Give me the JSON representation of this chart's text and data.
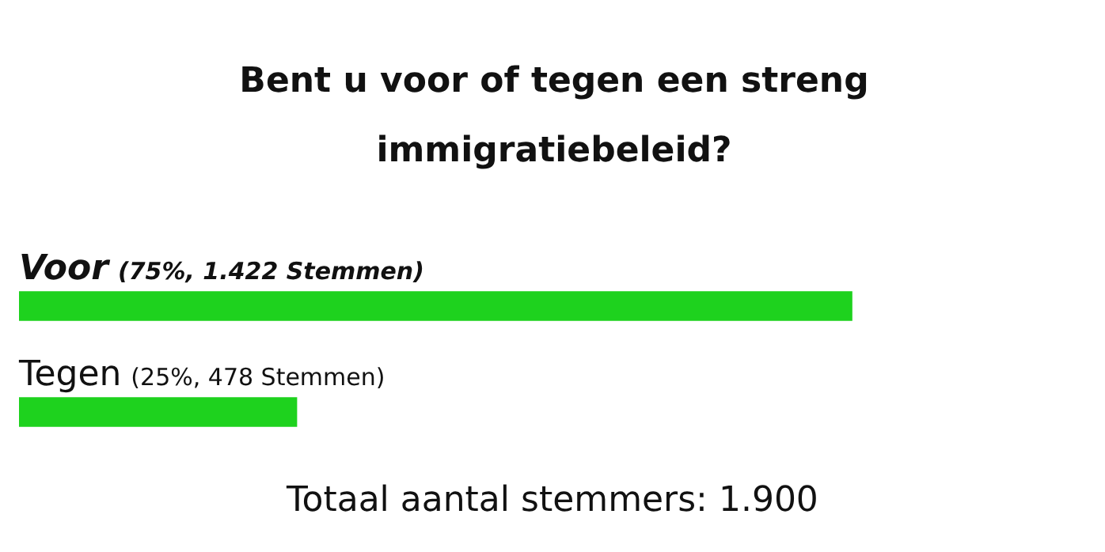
{
  "chart_data": {
    "type": "bar",
    "orientation": "horizontal",
    "title": "Bent u voor of tegen een streng immigratiebeleid?",
    "categories": [
      "Voor",
      "Tegen"
    ],
    "values": [
      75,
      25
    ],
    "value_labels": [
      "(75%, 1.422 Stemmen)",
      "(25%, 478 Stemmen)"
    ],
    "color": "#1ed21e",
    "legend": false,
    "annotations": [
      "Totaal aantal stemmers: 1.900"
    ]
  }
}
